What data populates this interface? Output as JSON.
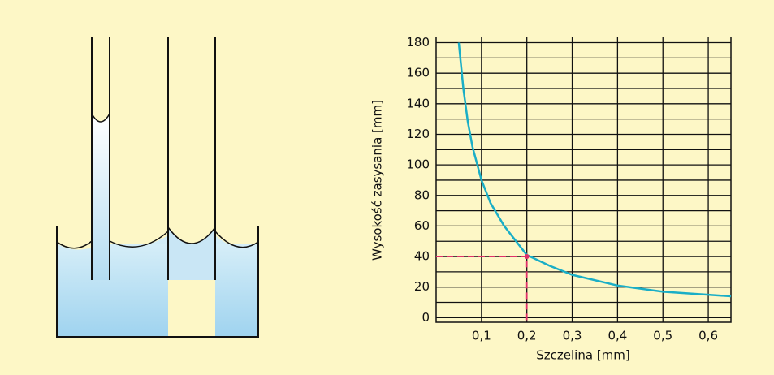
{
  "chart_data": {
    "type": "line",
    "x_label": "Szczelina [mm]",
    "y_label": "Wysokość zasysania [mm]",
    "x": [
      0.05,
      0.06,
      0.07,
      0.08,
      0.1,
      0.12,
      0.15,
      0.2,
      0.25,
      0.3,
      0.4,
      0.5,
      0.6,
      0.65
    ],
    "series": [
      {
        "color": "#1aaec6",
        "values": [
          180,
          150,
          128,
          112,
          90,
          75,
          60,
          41,
          34,
          28,
          21,
          17,
          15,
          14
        ]
      }
    ],
    "xlim": [
      0,
      0.65
    ],
    "ylim": [
      -3,
      184
    ],
    "xticks": [
      {
        "value": 0.1,
        "label": "0,1"
      },
      {
        "value": 0.2,
        "label": "0,2"
      },
      {
        "value": 0.3,
        "label": "0,3"
      },
      {
        "value": 0.4,
        "label": "0,4"
      },
      {
        "value": 0.5,
        "label": "0,5"
      },
      {
        "value": 0.6,
        "label": "0,6"
      }
    ],
    "yticks": [
      0,
      20,
      40,
      60,
      80,
      100,
      120,
      140,
      160,
      180
    ],
    "ygrid": [
      0,
      10,
      20,
      30,
      40,
      50,
      60,
      70,
      80,
      90,
      100,
      110,
      120,
      130,
      140,
      150,
      160,
      170,
      180
    ],
    "highlight": {
      "x": 0.2,
      "y": 40,
      "color": "#e0306a"
    }
  }
}
